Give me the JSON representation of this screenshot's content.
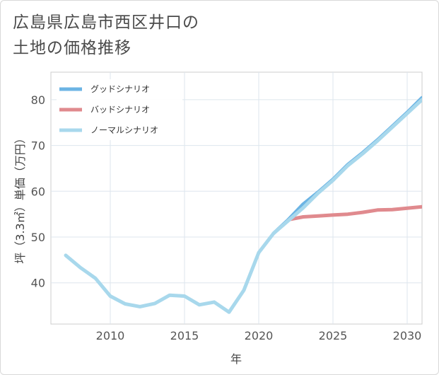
{
  "title": "広島県広島市西区井口の\n土地の価格推移",
  "chart_data": {
    "type": "line",
    "xlabel": "年",
    "ylabel": "坪（3.3㎡）単価（万円）",
    "xlim": [
      2006,
      2031
    ],
    "ylim": [
      31,
      86
    ],
    "xticks": [
      2010,
      2015,
      2020,
      2025,
      2030
    ],
    "yticks": [
      40,
      50,
      60,
      70,
      80
    ],
    "grid": true,
    "legend_position": "top-left",
    "series": [
      {
        "name": "グッドシナリオ",
        "color": "#6cb4e4",
        "x": [
          2021,
          2022,
          2023,
          2024,
          2025,
          2026,
          2027,
          2028,
          2029,
          2030,
          2031
        ],
        "y": [
          50.8,
          53.8,
          57.2,
          59.8,
          62.6,
          65.8,
          68.4,
          71.2,
          74.2,
          77.2,
          80.4
        ]
      },
      {
        "name": "バッドシナリオ",
        "color": "#e08a8e",
        "x": [
          2022,
          2023,
          2024,
          2025,
          2026,
          2027,
          2028,
          2029,
          2030,
          2031
        ],
        "y": [
          53.8,
          54.4,
          54.6,
          54.8,
          55.0,
          55.4,
          55.9,
          56.0,
          56.3,
          56.6
        ]
      },
      {
        "name": "ノーマルシナリオ",
        "color": "#a8d8ec",
        "x": [
          2007,
          2008,
          2009,
          2010,
          2011,
          2012,
          2013,
          2014,
          2015,
          2016,
          2017,
          2018,
          2019,
          2020,
          2021,
          2022,
          2023,
          2024,
          2025,
          2026,
          2027,
          2028,
          2029,
          2030,
          2031
        ],
        "y": [
          46.0,
          43.3,
          41.0,
          37.1,
          35.4,
          34.8,
          35.5,
          37.3,
          37.1,
          35.2,
          35.8,
          33.6,
          38.4,
          46.6,
          50.8,
          53.6,
          56.4,
          59.6,
          62.4,
          65.6,
          68.2,
          71.0,
          74.0,
          77.0,
          80.0
        ]
      }
    ]
  }
}
